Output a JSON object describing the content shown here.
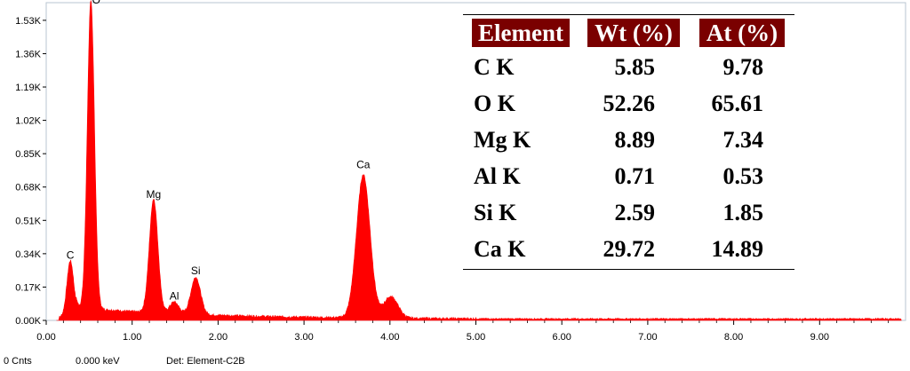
{
  "chart_data": {
    "type": "area",
    "xlabel": "",
    "ylabel": "",
    "xlim": [
      0,
      10
    ],
    "ylim": [
      0,
      1.62
    ],
    "x_ticks": [
      "0.00",
      "1.00",
      "2.00",
      "3.00",
      "4.00",
      "5.00",
      "6.00",
      "7.00",
      "8.00",
      "9.00"
    ],
    "y_ticks": [
      "0.00K",
      "0.17K",
      "0.34K",
      "0.51K",
      "0.68K",
      "0.85K",
      "1.02K",
      "1.19K",
      "1.36K",
      "1.53K"
    ],
    "y_tick_values": [
      0,
      0.17,
      0.34,
      0.51,
      0.68,
      0.85,
      1.02,
      1.19,
      1.36,
      1.53
    ],
    "series_color": "#ff0000",
    "peaks": [
      {
        "label": "C",
        "energy_kev": 0.28,
        "counts_k": 0.27
      },
      {
        "label": "O",
        "energy_kev": 0.52,
        "counts_k": 1.57
      },
      {
        "label": "Mg",
        "energy_kev": 1.25,
        "counts_k": 0.58
      },
      {
        "label": "Al",
        "energy_kev": 1.49,
        "counts_k": 0.06
      },
      {
        "label": "Si",
        "energy_kev": 1.74,
        "counts_k": 0.19
      },
      {
        "label": "Ca",
        "energy_kev": 3.69,
        "counts_k": 0.73
      }
    ],
    "unlabeled_peaks": [
      {
        "energy_kev": 4.01,
        "counts_k": 0.11
      }
    ]
  },
  "status": {
    "counts": "0 Cnts",
    "energy": "0.000 keV",
    "detector": "Det: Element-C2B"
  },
  "table": {
    "headers": [
      "Element",
      "Wt (%)",
      "At (%)"
    ],
    "header_color": "#7a0000",
    "rows": [
      [
        "C K",
        "5.85",
        "9.78"
      ],
      [
        "O K",
        "52.26",
        "65.61"
      ],
      [
        "Mg K",
        "8.89",
        "7.34"
      ],
      [
        "Al K",
        "0.71",
        "0.53"
      ],
      [
        "Si K",
        "2.59",
        "1.85"
      ],
      [
        "Ca K",
        "29.72",
        "14.89"
      ]
    ]
  }
}
